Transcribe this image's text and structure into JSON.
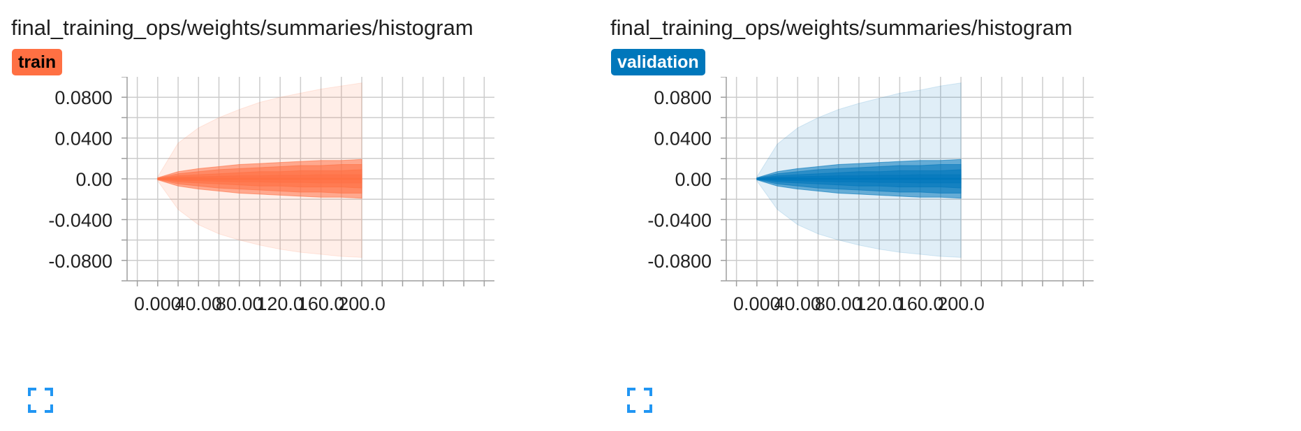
{
  "colors": {
    "train": "#ff7043",
    "validation": "#0077bb",
    "grid": "#cccccc",
    "axis": "#9e9e9e"
  },
  "icons": {
    "expand": "fullscreen-expand-icon"
  },
  "cards": [
    {
      "id": "train",
      "title": "final_training_ops/weights/summaries/histogram",
      "run": "train"
    },
    {
      "id": "validation",
      "title": "final_training_ops/weights/summaries/histogram",
      "run": "validation"
    }
  ],
  "chart_data": [
    {
      "type": "area",
      "title": "final_training_ops/weights/summaries/histogram",
      "run": "train",
      "xlabel": "",
      "ylabel": "",
      "xlim": [
        -30,
        330
      ],
      "ylim": [
        -0.1,
        0.1
      ],
      "x_ticks": [
        0,
        40,
        80,
        120,
        160,
        200
      ],
      "x_tick_labels": [
        "0.000",
        "40.00",
        "80.00",
        "120.0",
        "160.0",
        "200.0"
      ],
      "y_ticks": [
        0.08,
        0.04,
        0.0,
        -0.04,
        -0.08
      ],
      "y_tick_labels": [
        "0.0800",
        "0.0400",
        "0.00",
        "-0.0400",
        "-0.0800"
      ],
      "grid": true,
      "x": [
        0,
        20,
        40,
        60,
        80,
        100,
        120,
        140,
        160,
        180,
        200
      ],
      "bands": [
        {
          "name": "",
          "upper": [
            0.002,
            0.035,
            0.05,
            0.06,
            0.068,
            0.075,
            0.08,
            0.084,
            0.088,
            0.091,
            0.094
          ],
          "lower": [
            -0.002,
            -0.03,
            -0.045,
            -0.054,
            -0.06,
            -0.065,
            -0.069,
            -0.072,
            -0.074,
            -0.076,
            -0.077
          ]
        },
        {
          "name": "",
          "upper": [
            0.001,
            0.007,
            0.01,
            0.012,
            0.014,
            0.015,
            0.016,
            0.017,
            0.018,
            0.018,
            0.019
          ],
          "lower": [
            -0.001,
            -0.007,
            -0.01,
            -0.012,
            -0.014,
            -0.015,
            -0.016,
            -0.017,
            -0.018,
            -0.018,
            -0.019
          ]
        },
        {
          "name": "",
          "upper": [
            0.0007,
            0.005,
            0.007,
            0.009,
            0.01,
            0.011,
            0.012,
            0.013,
            0.013,
            0.014,
            0.014
          ],
          "lower": [
            -0.0007,
            -0.005,
            -0.007,
            -0.009,
            -0.01,
            -0.011,
            -0.012,
            -0.013,
            -0.013,
            -0.014,
            -0.014
          ]
        },
        {
          "name": "",
          "upper": [
            0.0004,
            0.003,
            0.004,
            0.005,
            0.006,
            0.007,
            0.007,
            0.008,
            0.008,
            0.008,
            0.009
          ],
          "lower": [
            -0.0004,
            -0.003,
            -0.004,
            -0.005,
            -0.006,
            -0.007,
            -0.007,
            -0.008,
            -0.008,
            -0.008,
            -0.009
          ]
        },
        {
          "name": "",
          "upper": [
            0.0002,
            0.0015,
            0.002,
            0.0025,
            0.003,
            0.003,
            0.0035,
            0.0035,
            0.004,
            0.004,
            0.004
          ],
          "lower": [
            -0.0002,
            -0.0015,
            -0.002,
            -0.0025,
            -0.003,
            -0.003,
            -0.0035,
            -0.0035,
            -0.004,
            -0.004,
            -0.004
          ]
        }
      ],
      "median": [
        0,
        0,
        0,
        0,
        0,
        0,
        0,
        0,
        0,
        0,
        0
      ]
    },
    {
      "type": "area",
      "title": "final_training_ops/weights/summaries/histogram",
      "run": "validation",
      "xlabel": "",
      "ylabel": "",
      "xlim": [
        -30,
        330
      ],
      "ylim": [
        -0.1,
        0.1
      ],
      "x_ticks": [
        0,
        40,
        80,
        120,
        160,
        200
      ],
      "x_tick_labels": [
        "0.000",
        "40.00",
        "80.00",
        "120.0",
        "160.0",
        "200.0"
      ],
      "y_ticks": [
        0.08,
        0.04,
        0.0,
        -0.04,
        -0.08
      ],
      "y_tick_labels": [
        "0.0800",
        "0.0400",
        "0.00",
        "-0.0400",
        "-0.0800"
      ],
      "grid": true,
      "x": [
        0,
        20,
        40,
        60,
        80,
        100,
        120,
        140,
        160,
        180,
        200
      ],
      "bands": [
        {
          "name": "",
          "upper": [
            0.002,
            0.034,
            0.05,
            0.06,
            0.068,
            0.074,
            0.079,
            0.084,
            0.087,
            0.091,
            0.094
          ],
          "lower": [
            -0.002,
            -0.03,
            -0.045,
            -0.054,
            -0.06,
            -0.065,
            -0.069,
            -0.072,
            -0.074,
            -0.076,
            -0.077
          ]
        },
        {
          "name": "",
          "upper": [
            0.001,
            0.007,
            0.01,
            0.012,
            0.014,
            0.015,
            0.016,
            0.017,
            0.018,
            0.018,
            0.019
          ],
          "lower": [
            -0.001,
            -0.007,
            -0.01,
            -0.012,
            -0.014,
            -0.015,
            -0.016,
            -0.017,
            -0.018,
            -0.018,
            -0.019
          ]
        },
        {
          "name": "",
          "upper": [
            0.0007,
            0.005,
            0.007,
            0.009,
            0.01,
            0.011,
            0.012,
            0.013,
            0.013,
            0.014,
            0.014
          ],
          "lower": [
            -0.0007,
            -0.005,
            -0.007,
            -0.009,
            -0.01,
            -0.011,
            -0.012,
            -0.013,
            -0.013,
            -0.014,
            -0.014
          ]
        },
        {
          "name": "",
          "upper": [
            0.0004,
            0.003,
            0.004,
            0.005,
            0.006,
            0.007,
            0.007,
            0.008,
            0.008,
            0.008,
            0.009
          ],
          "lower": [
            -0.0004,
            -0.003,
            -0.004,
            -0.005,
            -0.006,
            -0.007,
            -0.007,
            -0.008,
            -0.008,
            -0.008,
            -0.009
          ]
        },
        {
          "name": "",
          "upper": [
            0.0002,
            0.0015,
            0.002,
            0.0025,
            0.003,
            0.003,
            0.0035,
            0.0035,
            0.004,
            0.004,
            0.004
          ],
          "lower": [
            -0.0002,
            -0.0015,
            -0.002,
            -0.0025,
            -0.003,
            -0.003,
            -0.0035,
            -0.0035,
            -0.004,
            -0.004,
            -0.004
          ]
        }
      ],
      "median": [
        0,
        0,
        0,
        0,
        0,
        0,
        0,
        0,
        0,
        0,
        0
      ]
    }
  ]
}
